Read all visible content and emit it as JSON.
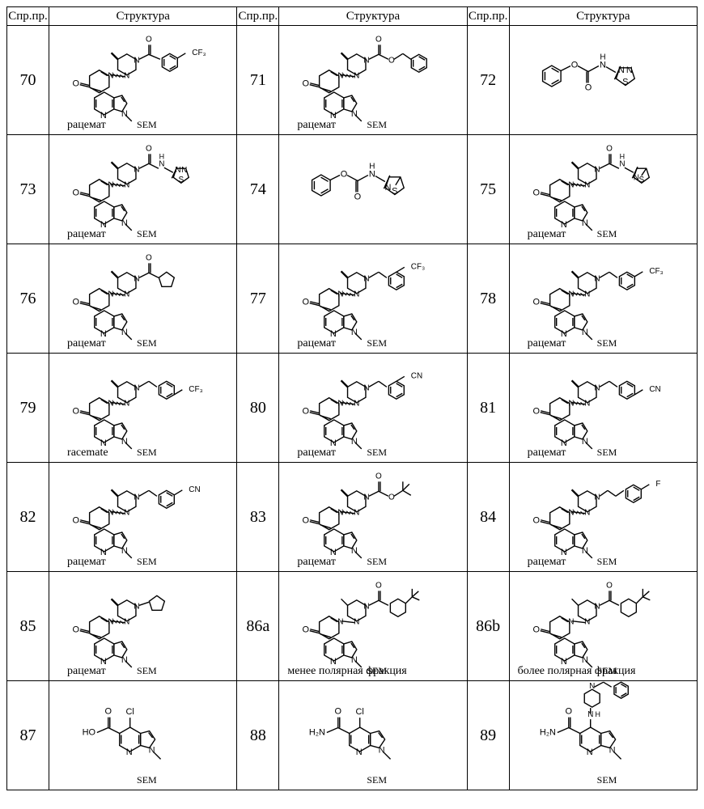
{
  "headers": {
    "id": "Спр.пр.",
    "struct": "Структура"
  },
  "captions": {
    "racemat": "рацемат",
    "racemate_en": "racemate",
    "less_polar": "менее полярная фракция",
    "more_polar": "более полярная фракция"
  },
  "labels": {
    "sem": "SEM",
    "cf3": "CF₃",
    "cn": "CN",
    "cl": "Cl",
    "f": "F",
    "ho": "HO",
    "h2n": "H₂N",
    "o": "O",
    "n": "N",
    "s": "S",
    "h": "H"
  },
  "rows": [
    [
      {
        "id": "70",
        "kind": "core",
        "sub": "aroyl",
        "subLabel": "CF₃",
        "subPos": "para",
        "cap": "racemat",
        "sem": true
      },
      {
        "id": "71",
        "kind": "core",
        "sub": "cbz",
        "cap": "racemat",
        "sem": true
      },
      {
        "id": "72",
        "kind": "phenylcarb_thiadiazole"
      }
    ],
    [
      {
        "id": "73",
        "kind": "core",
        "sub": "urea_thiadiazole",
        "cap": "racemat",
        "sem": true
      },
      {
        "id": "74",
        "kind": "phenylcarb_isothiazole"
      },
      {
        "id": "75",
        "kind": "core",
        "sub": "urea_isothiazole",
        "cap": "racemat",
        "sem": true
      }
    ],
    [
      {
        "id": "76",
        "kind": "core",
        "sub": "cyclopentanoyl",
        "cap": "racemat",
        "sem": true
      },
      {
        "id": "77",
        "kind": "core",
        "sub": "benzyl",
        "subLabel": "CF₃",
        "subPos": "meta",
        "cap": "racemat",
        "sem": true
      },
      {
        "id": "78",
        "kind": "core",
        "sub": "benzyl",
        "subLabel": "CF₃",
        "subPos": "para",
        "cap": "racemat",
        "sem": true
      }
    ],
    [
      {
        "id": "79",
        "kind": "core",
        "sub": "benzyl",
        "subLabel": "CF₃",
        "subPos": "ortho",
        "cap": "racemate_en",
        "sem": true
      },
      {
        "id": "80",
        "kind": "core",
        "sub": "benzyl",
        "subLabel": "CN",
        "subPos": "meta",
        "cap": "racemat",
        "sem": true
      },
      {
        "id": "81",
        "kind": "core",
        "sub": "benzyl",
        "subLabel": "CN",
        "subPos": "ortho",
        "cap": "racemat",
        "sem": true
      }
    ],
    [
      {
        "id": "82",
        "kind": "core",
        "sub": "benzyl",
        "subLabel": "CN",
        "subPos": "para",
        "cap": "racemat",
        "sem": true
      },
      {
        "id": "83",
        "kind": "core",
        "sub": "boc",
        "cap": "racemat",
        "sem": true
      },
      {
        "id": "84",
        "kind": "core",
        "sub": "phenethyl",
        "subLabel": "F",
        "subPos": "para",
        "cap": "racemat",
        "sem": true
      }
    ],
    [
      {
        "id": "85",
        "kind": "core",
        "sub": "cyclopentyl",
        "cap": "racemat",
        "sem": true
      },
      {
        "id": "86a",
        "kind": "core",
        "sub": "tbu_cyclohexanoyl",
        "cap": "less_polar",
        "sem": true,
        "nostereo": true
      },
      {
        "id": "86b",
        "kind": "core",
        "sub": "tbu_cyclohexanoyl",
        "cap": "more_polar",
        "sem": true,
        "nostereo": true
      }
    ],
    [
      {
        "id": "87",
        "kind": "azaindole",
        "r5": "acid",
        "r4": "Cl",
        "sem": true
      },
      {
        "id": "88",
        "kind": "azaindole",
        "r5": "amide",
        "r4": "Cl",
        "sem": true
      },
      {
        "id": "89",
        "kind": "azaindole",
        "r5": "amide",
        "r4": "benzyl_piperidine",
        "sem": true
      }
    ]
  ],
  "style": {
    "stroke": "#000000",
    "stroke_width": 1.4,
    "background": "#ffffff"
  }
}
